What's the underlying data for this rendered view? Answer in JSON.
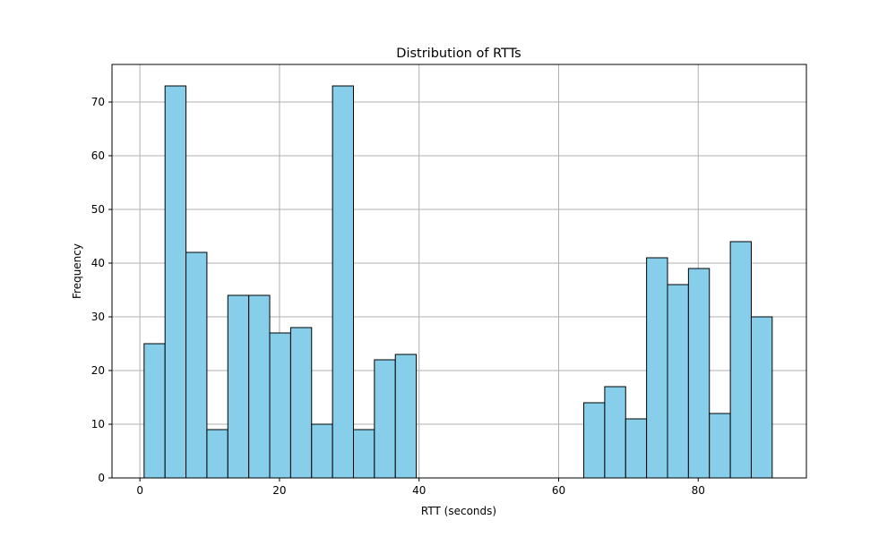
{
  "chart_data": {
    "type": "bar",
    "title": "Distribution of RTTs",
    "xlabel": "RTT (seconds)",
    "ylabel": "Frequency",
    "xlim": [
      -4,
      95.5
    ],
    "ylim": [
      0,
      77
    ],
    "xticks": [
      0,
      20,
      40,
      60,
      80
    ],
    "yticks": [
      0,
      10,
      20,
      30,
      40,
      50,
      60,
      70
    ],
    "grid": true,
    "bar_color": "#87CEEB",
    "edge_color": "#000000",
    "grid_color": "#b0b0b0",
    "bins": [
      {
        "start": 0.6,
        "end": 3.6,
        "count": 25
      },
      {
        "start": 3.6,
        "end": 6.6,
        "count": 73
      },
      {
        "start": 6.6,
        "end": 9.6,
        "count": 42
      },
      {
        "start": 9.6,
        "end": 12.6,
        "count": 9
      },
      {
        "start": 12.6,
        "end": 15.6,
        "count": 34
      },
      {
        "start": 15.6,
        "end": 18.6,
        "count": 34
      },
      {
        "start": 18.6,
        "end": 21.6,
        "count": 27
      },
      {
        "start": 21.6,
        "end": 24.6,
        "count": 28
      },
      {
        "start": 24.6,
        "end": 27.6,
        "count": 10
      },
      {
        "start": 27.6,
        "end": 30.6,
        "count": 73
      },
      {
        "start": 30.6,
        "end": 33.6,
        "count": 9
      },
      {
        "start": 33.6,
        "end": 36.6,
        "count": 22
      },
      {
        "start": 36.6,
        "end": 39.6,
        "count": 23
      },
      {
        "start": 63.6,
        "end": 66.6,
        "count": 14
      },
      {
        "start": 66.6,
        "end": 69.6,
        "count": 17
      },
      {
        "start": 69.6,
        "end": 72.6,
        "count": 11
      },
      {
        "start": 72.6,
        "end": 75.6,
        "count": 41
      },
      {
        "start": 75.6,
        "end": 78.6,
        "count": 36
      },
      {
        "start": 78.6,
        "end": 81.6,
        "count": 39
      },
      {
        "start": 81.6,
        "end": 84.6,
        "count": 12
      },
      {
        "start": 84.6,
        "end": 87.6,
        "count": 44
      },
      {
        "start": 87.6,
        "end": 90.6,
        "count": 30
      }
    ]
  }
}
